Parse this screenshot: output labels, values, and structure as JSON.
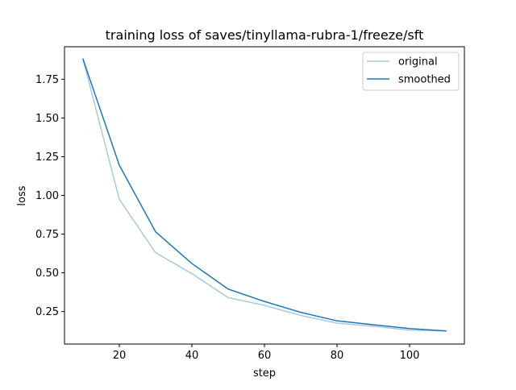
{
  "chart_data": {
    "type": "line",
    "title": "training loss of saves/tinyllama-rubra-1/freeze/sft",
    "xlabel": "step",
    "ylabel": "loss",
    "xlim": [
      4.9,
      115.1
    ],
    "ylim": [
      0.04,
      1.96
    ],
    "xticks": [
      20,
      40,
      60,
      80,
      100
    ],
    "xtick_labels": [
      "20",
      "40",
      "60",
      "80",
      "100"
    ],
    "yticks": [
      0.25,
      0.5,
      0.75,
      1.0,
      1.25,
      1.5,
      1.75
    ],
    "ytick_labels": [
      "0.25",
      "0.50",
      "0.75",
      "1.00",
      "1.25",
      "1.50",
      "1.75"
    ],
    "grid": false,
    "legend_position": "upper right",
    "series": [
      {
        "name": "original",
        "color": "#a6c9e1",
        "x": [
          10,
          20,
          30,
          40,
          50,
          60,
          70,
          80,
          90,
          100,
          110
        ],
        "y": [
          1.88,
          0.975,
          0.63,
          0.495,
          0.34,
          0.29,
          0.225,
          0.175,
          0.155,
          0.13,
          0.125
        ]
      },
      {
        "name": "smoothed",
        "color": "#1f77b4",
        "x": [
          10,
          20,
          30,
          40,
          50,
          60,
          70,
          80,
          90,
          100,
          110
        ],
        "y": [
          1.88,
          1.195,
          0.765,
          0.56,
          0.395,
          0.315,
          0.245,
          0.19,
          0.165,
          0.14,
          0.125
        ]
      }
    ]
  }
}
